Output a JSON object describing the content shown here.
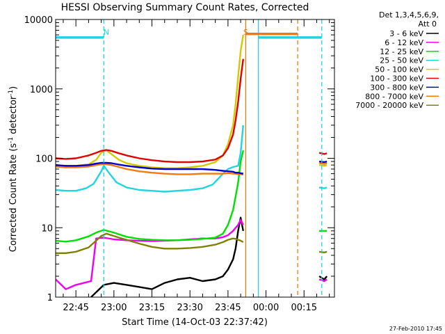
{
  "chart_data": {
    "type": "line",
    "title": "HESSI Observing Summary Count Rates, Corrected",
    "xlabel": "Start Time (14-Oct-03 22:37:42)",
    "ylabel": "Corrected Count Rate (s⁻¹ detector⁻¹)",
    "ylabel_parts": {
      "prefix": "Corrected Count Rate (s",
      "exp1": "-1",
      "mid": " detector",
      "exp2": "-1",
      "suffix": ")"
    },
    "yscale": "log",
    "xlim_minutes": [
      -8,
      102
    ],
    "ylim": [
      1,
      10000
    ],
    "x_tick_labels": [
      "22:45",
      "23:00",
      "23:15",
      "23:30",
      "23:45",
      "00:00",
      "00:15"
    ],
    "x_tick_values_minutes": [
      0,
      15,
      30,
      45,
      60,
      75,
      90
    ],
    "y_tick_labels": [
      "1",
      "10",
      "100",
      "1000",
      "10000"
    ],
    "y_tick_values": [
      1,
      10,
      100,
      1000,
      10000
    ],
    "legend_header": [
      "Det 1,3,4,5,6,9,",
      "Att 0"
    ],
    "legend_position": "right",
    "footer": "27-Feb-2010 17:45",
    "annotations": [
      {
        "text": "N",
        "x_minutes": 12,
        "color": "#22d3e0"
      },
      {
        "text": "S",
        "x_minutes": 67,
        "color": "#f07a10"
      }
    ],
    "markers": [
      {
        "name": "night-start-line",
        "x_minutes": 11,
        "color": "#22d3e0",
        "style": "dashed"
      },
      {
        "name": "saa-start-line",
        "x_minutes": 67,
        "color": "#f07a10",
        "style": "solid"
      },
      {
        "name": "night-end-line",
        "x_minutes": 72,
        "color": "#22d3e0",
        "style": "solid"
      },
      {
        "name": "saa-end-line",
        "x_minutes": 87.5,
        "color": "#f07a10",
        "style": "dashed"
      },
      {
        "name": "night-line-right",
        "x_minutes": 97,
        "color": "#22d3e0",
        "style": "dashed"
      }
    ],
    "flag_bars": [
      {
        "name": "night-bar-left",
        "x_range_minutes": [
          -8,
          11
        ],
        "y": 5500,
        "color": "#22d3e0"
      },
      {
        "name": "saa-bar",
        "x_range_minutes": [
          67,
          87.5
        ],
        "y": 6200,
        "color": "#f07a10"
      },
      {
        "name": "night-bar-right",
        "x_range_minutes": [
          72,
          97
        ],
        "y": 5500,
        "color": "#22d3e0"
      }
    ],
    "series": [
      {
        "name": "3 - 6 keV",
        "color": "#000000",
        "x": [
          -8,
          6,
          11,
          15,
          20,
          25,
          30,
          35,
          40,
          45,
          50,
          55,
          58,
          60,
          62,
          63,
          64,
          65,
          66,
          96,
          98,
          99
        ],
        "y": [
          1,
          1,
          1.5,
          1.6,
          1.5,
          1.4,
          1.3,
          1.6,
          1.8,
          1.9,
          1.7,
          1.8,
          2,
          2.5,
          3.5,
          5,
          9,
          14,
          9,
          2,
          1.8,
          2
        ]
      },
      {
        "name": "6 - 12 keV",
        "color": "#ee00ee",
        "x": [
          -8,
          -4,
          0,
          6,
          8,
          11,
          15,
          20,
          25,
          30,
          35,
          40,
          45,
          50,
          55,
          58,
          60,
          62,
          64,
          65,
          66,
          96,
          98,
          99
        ],
        "y": [
          1.8,
          1.3,
          1.5,
          1.7,
          7,
          7.2,
          6.8,
          6.6,
          6.5,
          6.4,
          6.5,
          6.6,
          6.8,
          7,
          7,
          7.3,
          7.8,
          9,
          11,
          13,
          11,
          1.8,
          1.7,
          1.8
        ]
      },
      {
        "name": "12 - 25 keV",
        "color": "#00e000",
        "x": [
          -8,
          -4,
          0,
          5,
          8,
          11,
          15,
          20,
          25,
          30,
          35,
          40,
          45,
          50,
          55,
          58,
          60,
          62,
          63,
          64,
          65,
          66,
          96,
          98,
          99
        ],
        "y": [
          6.5,
          6.3,
          6.6,
          7.5,
          8.5,
          9.3,
          8.5,
          7.4,
          6.9,
          6.7,
          6.6,
          6.6,
          6.7,
          6.9,
          7.2,
          8.2,
          11,
          18,
          28,
          45,
          90,
          130,
          9,
          9,
          9
        ]
      },
      {
        "name": "25 - 50 keV",
        "color": "#22d3e0",
        "x": [
          -8,
          -4,
          0,
          4,
          7,
          10,
          11,
          13,
          16,
          20,
          25,
          30,
          35,
          40,
          45,
          50,
          54,
          56,
          58,
          60,
          62,
          64,
          65,
          66,
          96,
          98,
          99
        ],
        "y": [
          35,
          34,
          34,
          37,
          43,
          65,
          78,
          62,
          45,
          38,
          35,
          34,
          33,
          34,
          35,
          37,
          42,
          50,
          60,
          70,
          75,
          78,
          120,
          300,
          38,
          37,
          38
        ]
      },
      {
        "name": "50 - 100 keV",
        "color": "#d4c800",
        "x": [
          -8,
          -4,
          0,
          5,
          8,
          10,
          12,
          14,
          17,
          20,
          25,
          30,
          35,
          40,
          45,
          50,
          55,
          58,
          60,
          62,
          63,
          64,
          65,
          66,
          96,
          98,
          99
        ],
        "y": [
          80,
          78,
          78,
          82,
          95,
          120,
          130,
          115,
          95,
          85,
          78,
          74,
          72,
          72,
          74,
          78,
          88,
          110,
          160,
          300,
          600,
          1500,
          3500,
          6000,
          80,
          78,
          80
        ]
      },
      {
        "name": "100 - 300 keV",
        "color": "#e00000",
        "x": [
          -8,
          -4,
          0,
          5,
          8,
          10,
          12,
          14,
          17,
          20,
          25,
          30,
          35,
          40,
          45,
          50,
          55,
          58,
          60,
          62,
          63,
          64,
          65,
          66,
          96,
          98,
          99
        ],
        "y": [
          100,
          98,
          100,
          110,
          120,
          128,
          132,
          128,
          118,
          110,
          100,
          94,
          90,
          88,
          88,
          90,
          96,
          110,
          140,
          220,
          350,
          650,
          1400,
          2700,
          120,
          115,
          118
        ]
      },
      {
        "name": "300 - 800 keV",
        "color": "#0000c8",
        "x": [
          -8,
          -4,
          0,
          5,
          8,
          10,
          12,
          14,
          17,
          20,
          25,
          30,
          35,
          40,
          45,
          50,
          55,
          58,
          60,
          62,
          63,
          64,
          65,
          66,
          96,
          98,
          99
        ],
        "y": [
          80,
          78,
          78,
          80,
          84,
          86,
          86,
          85,
          81,
          78,
          74,
          71,
          70,
          70,
          70,
          70,
          68,
          66,
          65,
          64,
          62,
          62,
          61,
          60,
          90,
          88,
          90
        ]
      },
      {
        "name": "800 - 7000 keV",
        "color": "#f07a10",
        "x": [
          -8,
          -4,
          0,
          5,
          8,
          10,
          12,
          14,
          17,
          20,
          25,
          30,
          35,
          40,
          45,
          50,
          55,
          58,
          60,
          62,
          63,
          64,
          65,
          66,
          96,
          98,
          99
        ],
        "y": [
          76,
          74,
          74,
          76,
          80,
          82,
          82,
          80,
          75,
          70,
          65,
          62,
          60,
          59,
          59,
          60,
          60,
          60,
          61,
          60,
          60,
          59,
          59,
          58,
          85,
          83,
          85
        ]
      },
      {
        "name": "7000 - 20000 keV",
        "color": "#808000",
        "x": [
          -8,
          -4,
          0,
          5,
          8,
          10,
          12,
          14,
          17,
          20,
          25,
          30,
          35,
          40,
          45,
          50,
          55,
          58,
          60,
          62,
          63,
          64,
          65,
          66,
          96,
          98,
          99
        ],
        "y": [
          4.3,
          4.3,
          4.5,
          5.2,
          6.5,
          7.6,
          8.2,
          7.8,
          7.2,
          6.7,
          5.9,
          5.3,
          5,
          5,
          5.1,
          5.3,
          5.7,
          6.2,
          6.7,
          7,
          6.9,
          6.7,
          6.5,
          6.2,
          4.5,
          4.4,
          4.5
        ]
      }
    ]
  }
}
